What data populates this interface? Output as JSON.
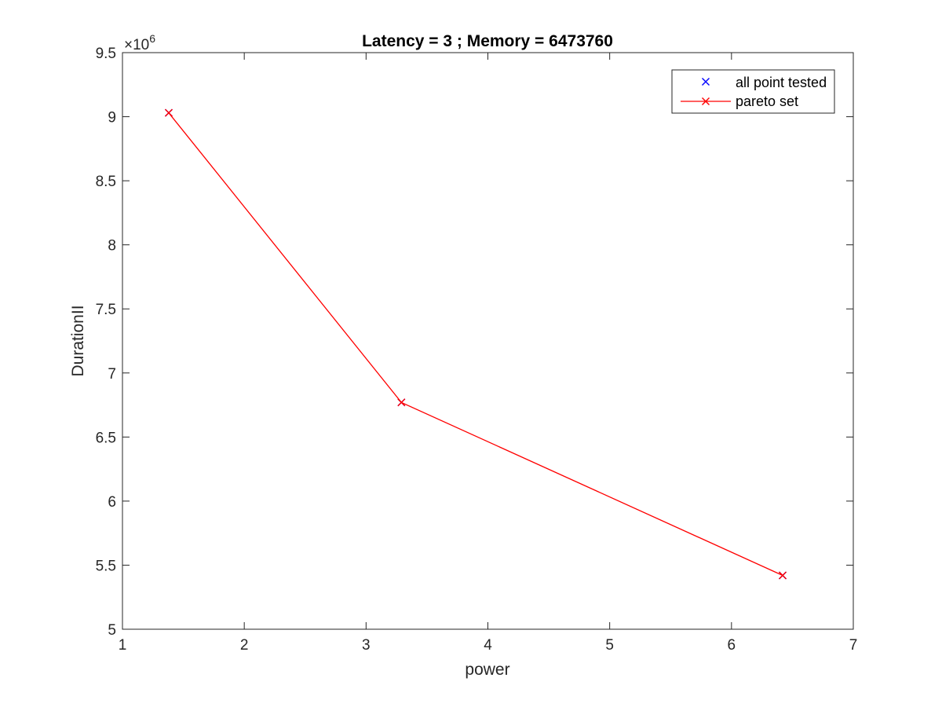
{
  "chart_data": {
    "type": "line",
    "title": "Latency = 3 ; Memory = 6473760",
    "xlabel": "power",
    "ylabel": "DurationII",
    "xlim": [
      1,
      7
    ],
    "ylim": [
      5,
      9.5
    ],
    "y_exponent_label": "×10",
    "y_exponent_power": "6",
    "x_ticks": [
      1,
      2,
      3,
      4,
      5,
      6,
      7
    ],
    "x_tick_labels": [
      "1",
      "2",
      "3",
      "4",
      "5",
      "6",
      "7"
    ],
    "y_ticks": [
      5,
      5.5,
      6,
      6.5,
      7,
      7.5,
      8,
      8.5,
      9,
      9.5
    ],
    "y_tick_labels": [
      "5",
      "5.5",
      "6",
      "6.5",
      "7",
      "7.5",
      "8",
      "8.5",
      "9",
      "9.5"
    ],
    "grid": false,
    "legend_position": "top-right",
    "series": [
      {
        "name": "all point tested",
        "color": "#0000ff",
        "style": "markers",
        "marker": "x",
        "x": [
          1.38,
          3.29,
          6.42
        ],
        "y": [
          9.03,
          6.77,
          5.42
        ]
      },
      {
        "name": "pareto set",
        "color": "#ff0000",
        "style": "line-markers",
        "marker": "x",
        "x": [
          1.38,
          3.29,
          6.42
        ],
        "y": [
          9.03,
          6.77,
          5.42
        ]
      }
    ]
  }
}
